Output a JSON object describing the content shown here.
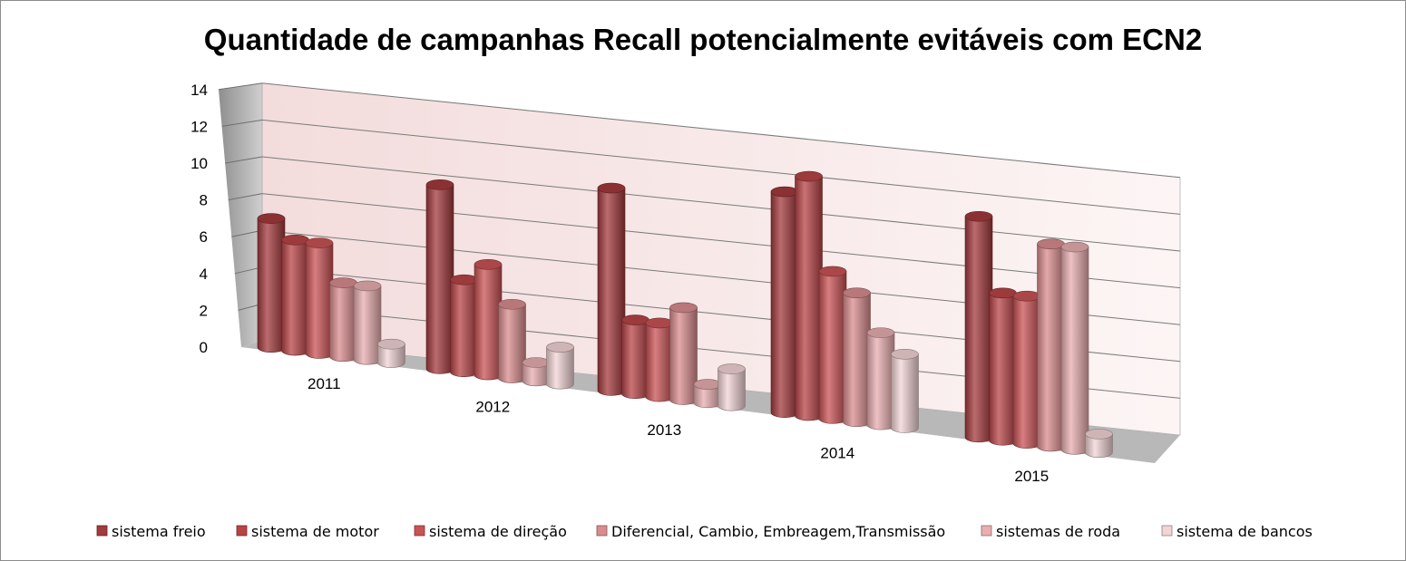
{
  "chart_data": {
    "type": "bar",
    "title": "Quantidade de campanhas Recall potencialmente evitáveis com ECN2",
    "categories": [
      "2011",
      "2012",
      "2013",
      "2014",
      "2015"
    ],
    "y_ticks": [
      "0",
      "2",
      "4",
      "6",
      "8",
      "10",
      "12",
      "14"
    ],
    "ylim": [
      0,
      14
    ],
    "legend_position": "bottom",
    "series": [
      {
        "name": "sistema freio",
        "color": "#a33a3c",
        "values": [
          7,
          10,
          11,
          12,
          12
        ]
      },
      {
        "name": "sistema de motor",
        "color": "#b84447",
        "values": [
          6,
          5,
          4,
          13,
          8
        ]
      },
      {
        "name": "sistema de direção",
        "color": "#c95356",
        "values": [
          6,
          6,
          4,
          8,
          8
        ]
      },
      {
        "name": "Diferencial, Cambio, Embreagem,Transmissão",
        "color": "#d98c8e",
        "values": [
          4,
          4,
          5,
          7,
          11
        ]
      },
      {
        "name": "sistemas de roda",
        "color": "#e8aeb0",
        "values": [
          4,
          1,
          1,
          5,
          11
        ]
      },
      {
        "name": "sistema de bancos",
        "color": "#f2d4d5",
        "values": [
          1,
          2,
          2,
          4,
          1
        ]
      }
    ]
  }
}
